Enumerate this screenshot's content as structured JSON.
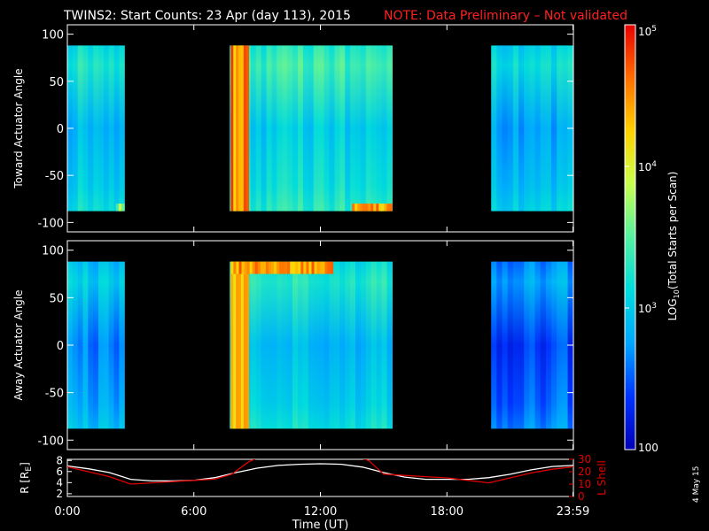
{
  "header": {
    "title": "TWINS2: Start Counts: 23 Apr (day 113), 2015",
    "note": "NOTE: Data Preliminary – Not validated"
  },
  "colorbar": {
    "label": "LOG10(Total Starts per Scan)",
    "label_base": "LOG",
    "label_sub": "10",
    "label_rest": "(Total Starts per Scan)",
    "ticks": [
      {
        "value": 100,
        "label": "100"
      },
      {
        "value": 1000,
        "label": "10^3"
      },
      {
        "value": 10000,
        "label": "10^4"
      },
      {
        "value": 100000,
        "label": "10^5"
      }
    ],
    "range": [
      100,
      100000
    ],
    "scale": "log",
    "colors": [
      "#0000b4",
      "#0033ff",
      "#00a6ff",
      "#00dcdc",
      "#55f0a0",
      "#c8ff50",
      "#ffd200",
      "#ff6e00",
      "#e60000"
    ]
  },
  "footer": {
    "date_stamp": "4 May 15"
  },
  "chart_data": [
    {
      "type": "heatmap",
      "name": "toward",
      "ylabel": "Toward Actuator Angle",
      "xlim": [
        0,
        24
      ],
      "ylim": [
        -110,
        110
      ],
      "yticks": [
        -100,
        -50,
        0,
        50,
        100
      ],
      "data_y_range": [
        -88,
        88
      ],
      "segments": [
        {
          "t_start": 0.0,
          "t_end": 2.7,
          "base_log": 3.0
        },
        {
          "t_start": 7.7,
          "t_end": 15.4,
          "base_log": 3.1
        },
        {
          "t_start": 20.1,
          "t_end": 23.99,
          "base_log": 2.85
        }
      ],
      "features": [
        {
          "t_start": 7.75,
          "t_end": 8.6,
          "log_value": 4.8,
          "angle_range": [
            -88,
            88
          ]
        },
        {
          "t_start": 13.5,
          "t_end": 15.4,
          "log_value": 4.7,
          "angle_range": [
            -88,
            -80
          ]
        },
        {
          "t_start": 2.3,
          "t_end": 2.7,
          "log_value": 3.9,
          "angle_range": [
            -88,
            -80
          ]
        }
      ]
    },
    {
      "type": "heatmap",
      "name": "away",
      "ylabel": "Away Actuator Angle",
      "xlim": [
        0,
        24
      ],
      "ylim": [
        -110,
        110
      ],
      "yticks": [
        -100,
        -50,
        0,
        50,
        100
      ],
      "data_y_range": [
        -88,
        88
      ],
      "segments": [
        {
          "t_start": 0.0,
          "t_end": 2.7,
          "base_log": 2.7
        },
        {
          "t_start": 7.7,
          "t_end": 15.4,
          "base_log": 2.95
        },
        {
          "t_start": 20.1,
          "t_end": 23.99,
          "base_log": 2.5
        }
      ],
      "features": [
        {
          "t_start": 7.75,
          "t_end": 8.6,
          "log_value": 4.7,
          "angle_range": [
            -88,
            88
          ]
        },
        {
          "t_start": 7.75,
          "t_end": 12.6,
          "log_value": 4.8,
          "angle_range": [
            75,
            88
          ]
        }
      ]
    },
    {
      "type": "line",
      "name": "ephemeris",
      "ylabel_left": "R [RE]",
      "ylabel_left_base": "R [R",
      "ylabel_left_sub": "E",
      "ylabel_left_end": "]",
      "ylabel_right": "L Shell",
      "xlabel": "Time (UT)",
      "xlim": [
        0,
        24
      ],
      "ylim_left": [
        1.5,
        8.2
      ],
      "ylim_right": [
        0,
        30
      ],
      "yticks_left": [
        2,
        4,
        6,
        8
      ],
      "yticks_right": [
        0,
        10,
        20,
        30
      ],
      "xticks": [
        {
          "value": 0,
          "label": "0:00"
        },
        {
          "value": 6,
          "label": "6:00"
        },
        {
          "value": 12,
          "label": "12:00"
        },
        {
          "value": 18,
          "label": "18:00"
        },
        {
          "value": 23.98,
          "label": "23:59"
        }
      ],
      "series": [
        {
          "name": "R",
          "color": "#ffffff",
          "axis": "left",
          "x": [
            0,
            1,
            2,
            3,
            4,
            5,
            6,
            7,
            8,
            9,
            10,
            11,
            12,
            13,
            14,
            15,
            16,
            17,
            18,
            19,
            20,
            21,
            22,
            23,
            24
          ],
          "y": [
            7.0,
            6.5,
            5.8,
            4.6,
            4.3,
            4.3,
            4.4,
            4.9,
            5.8,
            6.6,
            7.1,
            7.3,
            7.4,
            7.3,
            6.8,
            5.8,
            5.0,
            4.6,
            4.6,
            4.6,
            4.9,
            5.5,
            6.3,
            6.9,
            7.1
          ]
        },
        {
          "name": "L Shell",
          "color": "#e00000",
          "axis": "right",
          "x": [
            0,
            1,
            2,
            3,
            4,
            5,
            6,
            7,
            7.8,
            8.6,
            9.0,
            9.1,
            13.8,
            13.9,
            14.3,
            15.0,
            16,
            17,
            18,
            19,
            20,
            21,
            22,
            23,
            24
          ],
          "y": [
            24,
            20,
            16,
            10,
            11,
            12,
            13,
            14,
            18,
            28,
            31,
            null,
            null,
            31,
            29,
            18,
            17,
            16,
            15,
            13,
            11,
            15,
            19,
            22,
            24
          ]
        }
      ]
    }
  ]
}
